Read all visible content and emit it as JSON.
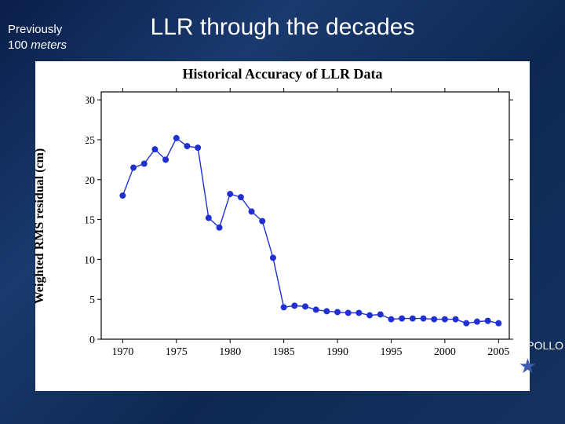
{
  "header": {
    "title": "LLR through the decades",
    "left_note_line1": "Previously",
    "left_note_line2": "100 meters"
  },
  "annotation": {
    "apollo": "APOLLO",
    "star_glyph": "★"
  },
  "chart": {
    "type": "line",
    "title": "Historical Accuracy of LLR Data",
    "title_fontsize": 18,
    "xlabel": "",
    "ylabel": "Weighted RMS residual (cm)",
    "label_fontsize": 16,
    "xlim": [
      1968,
      2006
    ],
    "ylim": [
      0,
      31
    ],
    "xticks": [
      1970,
      1975,
      1980,
      1985,
      1990,
      1995,
      2000,
      2005
    ],
    "yticks": [
      0,
      5,
      10,
      15,
      20,
      25,
      30
    ],
    "background_color": "#ffffff",
    "axis_color": "#000000",
    "tick_fontsize": 14,
    "line_color": "#2030d0",
    "line_width": 1.4,
    "marker_color": "#2030d0",
    "marker_radius": 4,
    "data": [
      {
        "x": 1970,
        "y": 18.0
      },
      {
        "x": 1971,
        "y": 21.5
      },
      {
        "x": 1972,
        "y": 22.0
      },
      {
        "x": 1973,
        "y": 23.8
      },
      {
        "x": 1974,
        "y": 22.5
      },
      {
        "x": 1975,
        "y": 25.2
      },
      {
        "x": 1976,
        "y": 24.2
      },
      {
        "x": 1977,
        "y": 24.0
      },
      {
        "x": 1978,
        "y": 15.2
      },
      {
        "x": 1979,
        "y": 14.0
      },
      {
        "x": 1980,
        "y": 18.2
      },
      {
        "x": 1981,
        "y": 17.8
      },
      {
        "x": 1982,
        "y": 16.0
      },
      {
        "x": 1983,
        "y": 14.8
      },
      {
        "x": 1984,
        "y": 10.2
      },
      {
        "x": 1985,
        "y": 4.0
      },
      {
        "x": 1986,
        "y": 4.2
      },
      {
        "x": 1987,
        "y": 4.1
      },
      {
        "x": 1988,
        "y": 3.7
      },
      {
        "x": 1989,
        "y": 3.5
      },
      {
        "x": 1990,
        "y": 3.4
      },
      {
        "x": 1991,
        "y": 3.3
      },
      {
        "x": 1992,
        "y": 3.3
      },
      {
        "x": 1993,
        "y": 3.0
      },
      {
        "x": 1994,
        "y": 3.1
      },
      {
        "x": 1995,
        "y": 2.5
      },
      {
        "x": 1996,
        "y": 2.6
      },
      {
        "x": 1997,
        "y": 2.6
      },
      {
        "x": 1998,
        "y": 2.6
      },
      {
        "x": 1999,
        "y": 2.5
      },
      {
        "x": 2000,
        "y": 2.5
      },
      {
        "x": 2001,
        "y": 2.5
      },
      {
        "x": 2002,
        "y": 2.0
      },
      {
        "x": 2003,
        "y": 2.2
      },
      {
        "x": 2004,
        "y": 2.3
      },
      {
        "x": 2005,
        "y": 2.0
      }
    ]
  }
}
